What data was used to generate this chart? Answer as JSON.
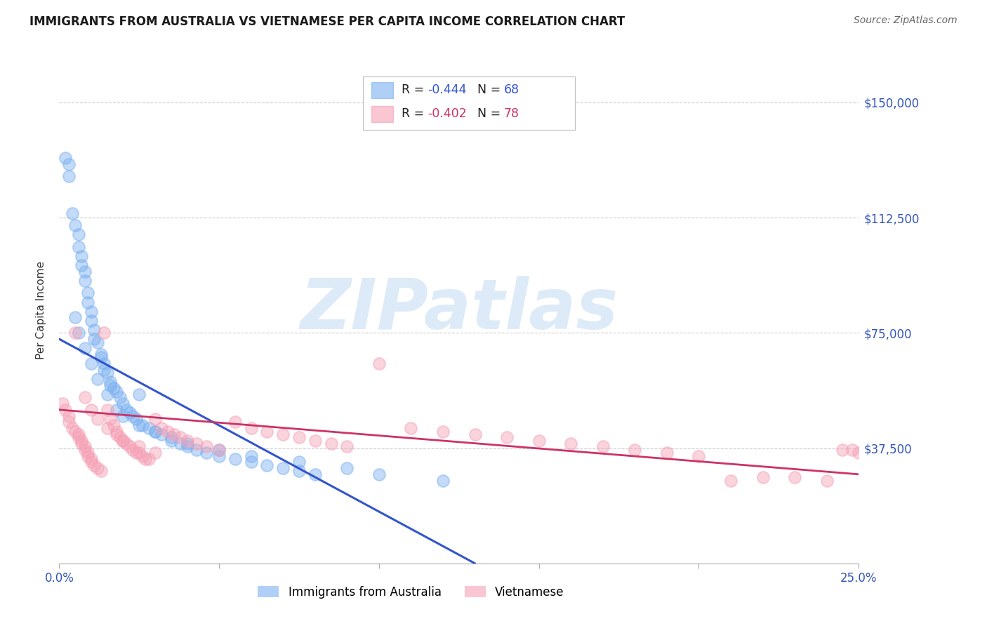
{
  "title": "IMMIGRANTS FROM AUSTRALIA VS VIETNAMESE PER CAPITA INCOME CORRELATION CHART",
  "source": "Source: ZipAtlas.com",
  "ylabel": "Per Capita Income",
  "xlim": [
    0.0,
    0.25
  ],
  "ylim": [
    0,
    165000
  ],
  "watermark": "ZIPatlas",
  "r1": "-0.444",
  "n1": "68",
  "r2": "-0.402",
  "n2": "78",
  "series1_color": "#7ab0f0",
  "series2_color": "#f5a0b5",
  "trend1_color": "#3355cc",
  "trend2_color": "#cc3366",
  "series1_label": "Immigrants from Australia",
  "series2_label": "Vietnamese",
  "ytick_values": [
    0,
    37500,
    75000,
    112500,
    150000
  ],
  "ytick_labels": [
    "",
    "$37,500",
    "$75,000",
    "$112,500",
    "$150,000"
  ],
  "xtick_values": [
    0.0,
    0.05,
    0.1,
    0.15,
    0.2,
    0.25
  ],
  "xtick_labels": [
    "0.0%",
    "",
    "",
    "",
    "",
    "25.0%"
  ],
  "aus_x": [
    0.002,
    0.003,
    0.003,
    0.004,
    0.005,
    0.006,
    0.006,
    0.007,
    0.007,
    0.008,
    0.008,
    0.009,
    0.009,
    0.01,
    0.01,
    0.011,
    0.011,
    0.012,
    0.013,
    0.013,
    0.014,
    0.014,
    0.015,
    0.016,
    0.016,
    0.017,
    0.018,
    0.019,
    0.02,
    0.021,
    0.022,
    0.023,
    0.024,
    0.025,
    0.026,
    0.028,
    0.03,
    0.032,
    0.035,
    0.038,
    0.04,
    0.043,
    0.046,
    0.05,
    0.055,
    0.06,
    0.065,
    0.07,
    0.075,
    0.08,
    0.005,
    0.006,
    0.008,
    0.01,
    0.012,
    0.015,
    0.018,
    0.02,
    0.025,
    0.03,
    0.035,
    0.04,
    0.05,
    0.06,
    0.075,
    0.09,
    0.1,
    0.12
  ],
  "aus_y": [
    132000,
    130000,
    126000,
    114000,
    110000,
    107000,
    103000,
    100000,
    97000,
    95000,
    92000,
    88000,
    85000,
    82000,
    79000,
    76000,
    73000,
    72000,
    68000,
    67000,
    65000,
    63000,
    62000,
    59000,
    58000,
    57000,
    56000,
    54000,
    52000,
    50000,
    49000,
    48000,
    47000,
    55000,
    45000,
    44000,
    43000,
    42000,
    40000,
    39000,
    38000,
    37000,
    36000,
    35000,
    34000,
    33000,
    32000,
    31000,
    30000,
    29000,
    80000,
    75000,
    70000,
    65000,
    60000,
    55000,
    50000,
    48000,
    45000,
    43000,
    41000,
    39000,
    37000,
    35000,
    33000,
    31000,
    29000,
    27000
  ],
  "viet_x": [
    0.001,
    0.002,
    0.003,
    0.003,
    0.004,
    0.005,
    0.005,
    0.006,
    0.006,
    0.007,
    0.007,
    0.008,
    0.008,
    0.009,
    0.009,
    0.01,
    0.01,
    0.011,
    0.012,
    0.013,
    0.014,
    0.015,
    0.016,
    0.017,
    0.018,
    0.019,
    0.02,
    0.021,
    0.022,
    0.023,
    0.024,
    0.025,
    0.026,
    0.027,
    0.028,
    0.03,
    0.032,
    0.034,
    0.036,
    0.038,
    0.04,
    0.043,
    0.046,
    0.05,
    0.055,
    0.06,
    0.065,
    0.07,
    0.075,
    0.08,
    0.085,
    0.09,
    0.1,
    0.11,
    0.12,
    0.13,
    0.14,
    0.15,
    0.16,
    0.17,
    0.18,
    0.19,
    0.2,
    0.21,
    0.22,
    0.23,
    0.24,
    0.245,
    0.248,
    0.25,
    0.008,
    0.01,
    0.012,
    0.015,
    0.018,
    0.02,
    0.025,
    0.03
  ],
  "viet_y": [
    52000,
    50000,
    48000,
    46000,
    44000,
    43000,
    75000,
    42000,
    41000,
    40000,
    39000,
    38000,
    37000,
    36000,
    35000,
    34000,
    33000,
    32000,
    31000,
    30000,
    75000,
    50000,
    47000,
    45000,
    43000,
    41000,
    40000,
    39000,
    38000,
    37000,
    36000,
    36000,
    35000,
    34000,
    34000,
    47000,
    44000,
    43000,
    42000,
    41000,
    40000,
    39000,
    38000,
    37000,
    46000,
    44000,
    43000,
    42000,
    41000,
    40000,
    39000,
    38000,
    65000,
    44000,
    43000,
    42000,
    41000,
    40000,
    39000,
    38000,
    37000,
    36000,
    35000,
    27000,
    28000,
    28000,
    27000,
    37000,
    37000,
    36000,
    54000,
    50000,
    47000,
    44000,
    42000,
    40000,
    38000,
    36000
  ],
  "trend1_x0": 0.0,
  "trend1_y0": 73000,
  "trend1_x1": 0.13,
  "trend1_y1": 0,
  "trend2_x0": 0.0,
  "trend2_y0": 50000,
  "trend2_x1": 0.25,
  "trend2_y1": 29000
}
